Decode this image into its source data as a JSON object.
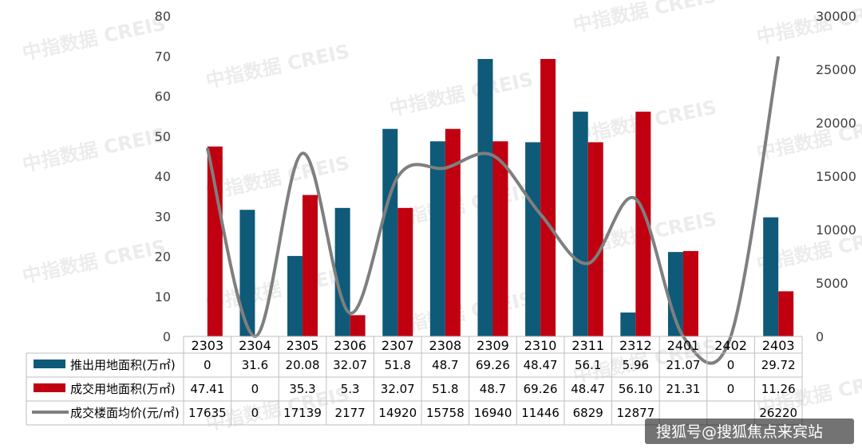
{
  "chart_data": {
    "type": "bar",
    "categories": [
      "2303",
      "2304",
      "2305",
      "2306",
      "2307",
      "2308",
      "2309",
      "2310",
      "2311",
      "2312",
      "2401",
      "2402",
      "2403"
    ],
    "series": [
      {
        "name": "推出用地面积(万㎡)",
        "kind": "bar",
        "axis": "left",
        "color": "#0e5a78",
        "values": [
          0,
          31.6,
          20.08,
          32.07,
          51.8,
          48.7,
          69.26,
          48.47,
          56.1,
          5.96,
          21.07,
          0,
          29.72
        ],
        "labels": [
          "0",
          "31.6",
          "20.08",
          "32.07",
          "51.8",
          "48.7",
          "69.26",
          "48.47",
          "56.1",
          "5.96",
          "21.07",
          "0",
          "29.72"
        ]
      },
      {
        "name": "成交用地面积(万㎡)",
        "kind": "bar",
        "axis": "left",
        "color": "#c00010",
        "values": [
          47.41,
          0,
          35.3,
          5.3,
          32.07,
          51.8,
          48.7,
          69.26,
          48.47,
          56.1,
          21.31,
          0,
          11.26
        ],
        "labels": [
          "47.41",
          "0",
          "35.3",
          "5.3",
          "32.07",
          "51.8",
          "48.7",
          "69.26",
          "48.47",
          "56.10",
          "21.31",
          "0",
          "11.26"
        ]
      },
      {
        "name": "成交楼面均价(元/㎡)",
        "kind": "line",
        "axis": "right",
        "color": "#7f7f7f",
        "values": [
          17635,
          0,
          17139,
          2177,
          14920,
          15758,
          16940,
          11446,
          6829,
          12877,
          0,
          0,
          26220
        ],
        "labels": [
          "17635",
          "0",
          "17139",
          "2177",
          "14920",
          "15758",
          "16940",
          "11446",
          "6829",
          "12877",
          "",
          "",
          "26220"
        ]
      }
    ],
    "y_left": {
      "min": 0,
      "max": 80,
      "ticks": [
        "0",
        "10",
        "20",
        "30",
        "40",
        "50",
        "60",
        "70",
        "80"
      ]
    },
    "y_right": {
      "min": 0,
      "max": 30000,
      "ticks": [
        "0",
        "5000",
        "10000",
        "15000",
        "20000",
        "25000",
        "30000"
      ]
    },
    "grid": false,
    "legend": "data-table",
    "watermark": "中指数据 CREIS",
    "credit": "搜狐号@搜狐焦点来宾站"
  }
}
